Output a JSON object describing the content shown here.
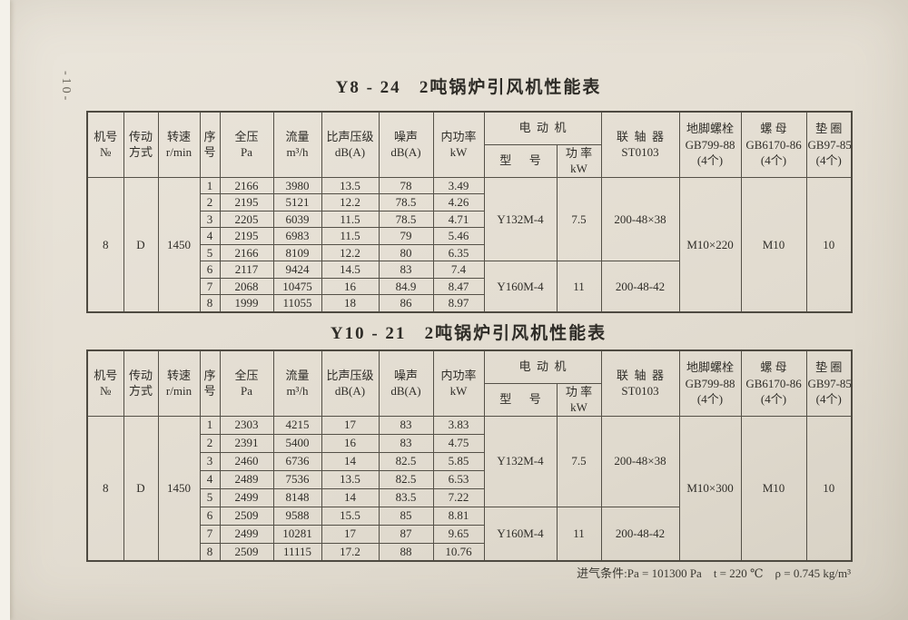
{
  "page": {
    "page_number": "-10-",
    "intake_note": "进气条件:Pa = 101300 Pa    t = 220 ℃    ρ = 0.745 kg/m³"
  },
  "tables": [
    {
      "title": "Y8 - 24   2吨锅炉引风机性能表",
      "header": {
        "cols": [
          [
            "机号",
            "№"
          ],
          [
            "传动",
            "方式"
          ],
          [
            "转速",
            "r/min"
          ],
          [
            "序",
            "号"
          ],
          [
            "全压",
            "Pa"
          ],
          [
            "流量",
            "m³/h"
          ],
          [
            "比声压级",
            "dB(A)"
          ],
          [
            "噪声",
            "dB(A)"
          ],
          [
            "内功率",
            "kW"
          ]
        ],
        "motor_group_label": "电  动  机",
        "motor_model_label": [
          "型      号"
        ],
        "motor_power_label": [
          "功 率",
          "kW"
        ],
        "coupling_label": [
          "联  轴  器",
          "ST0103"
        ],
        "anchor_label": [
          "地脚螺栓",
          "GB799-88",
          "(4个)"
        ],
        "nut_label": [
          "螺 母",
          "GB6170-86",
          "(4个)"
        ],
        "washer_label": [
          "垫 圈",
          "GB97-85",
          "(4个)"
        ]
      },
      "body": {
        "machine_no": "8",
        "drive_mode": "D",
        "speed": "1450",
        "rows": [
          [
            "1",
            "2166",
            "3980",
            "13.5",
            "78",
            "3.49"
          ],
          [
            "2",
            "2195",
            "5121",
            "12.2",
            "78.5",
            "4.26"
          ],
          [
            "3",
            "2205",
            "6039",
            "11.5",
            "78.5",
            "4.71"
          ],
          [
            "4",
            "2195",
            "6983",
            "11.5",
            "79",
            "5.46"
          ],
          [
            "5",
            "2166",
            "8109",
            "12.2",
            "80",
            "6.35"
          ],
          [
            "6",
            "2117",
            "9424",
            "14.5",
            "83",
            "7.4"
          ],
          [
            "7",
            "2068",
            "10475",
            "16",
            "84.9",
            "8.47"
          ],
          [
            "8",
            "1999",
            "11055",
            "18",
            "86",
            "8.97"
          ]
        ],
        "motor_groups": [
          {
            "model": "Y132M-4",
            "power_kw": "7.5",
            "coupling": "200-48×38",
            "row_span": 5
          },
          {
            "model": "Y160M-4",
            "power_kw": "11",
            "coupling": "200-48-42",
            "row_span": 3
          }
        ],
        "anchor_bolt": "M10×220",
        "nut": "M10",
        "washer": "10"
      }
    },
    {
      "title": "Y10 - 21   2吨锅炉引风机性能表",
      "header": {
        "cols": [
          [
            "机号",
            "№"
          ],
          [
            "传动",
            "方式"
          ],
          [
            "转速",
            "r/min"
          ],
          [
            "序",
            "号"
          ],
          [
            "全压",
            "Pa"
          ],
          [
            "流量",
            "m³/h"
          ],
          [
            "比声压级",
            "dB(A)"
          ],
          [
            "噪声",
            "dB(A)"
          ],
          [
            "内功率",
            "kW"
          ]
        ],
        "motor_group_label": "电  动  机",
        "motor_model_label": [
          "型      号"
        ],
        "motor_power_label": [
          "功 率",
          "kW"
        ],
        "coupling_label": [
          "联  轴  器",
          "ST0103"
        ],
        "anchor_label": [
          "地脚螺栓",
          "GB799-88",
          "(4个)"
        ],
        "nut_label": [
          "螺 母",
          "GB6170-86",
          "(4个)"
        ],
        "washer_label": [
          "垫 圈",
          "GB97-85",
          "(4个)"
        ]
      },
      "body": {
        "machine_no": "8",
        "drive_mode": "D",
        "speed": "1450",
        "rows": [
          [
            "1",
            "2303",
            "4215",
            "17",
            "83",
            "3.83"
          ],
          [
            "2",
            "2391",
            "5400",
            "16",
            "83",
            "4.75"
          ],
          [
            "3",
            "2460",
            "6736",
            "14",
            "82.5",
            "5.85"
          ],
          [
            "4",
            "2489",
            "7536",
            "13.5",
            "82.5",
            "6.53"
          ],
          [
            "5",
            "2499",
            "8148",
            "14",
            "83.5",
            "7.22"
          ],
          [
            "6",
            "2509",
            "9588",
            "15.5",
            "85",
            "8.81"
          ],
          [
            "7",
            "2499",
            "10281",
            "17",
            "87",
            "9.65"
          ],
          [
            "8",
            "2509",
            "11115",
            "17.2",
            "88",
            "10.76"
          ]
        ],
        "motor_groups": [
          {
            "model": "Y132M-4",
            "power_kw": "7.5",
            "coupling": "200-48×38",
            "row_span": 5
          },
          {
            "model": "Y160M-4",
            "power_kw": "11",
            "coupling": "200-48-42",
            "row_span": 3
          }
        ],
        "anchor_bolt": "M10×300",
        "nut": "M10",
        "washer": "10"
      }
    }
  ]
}
